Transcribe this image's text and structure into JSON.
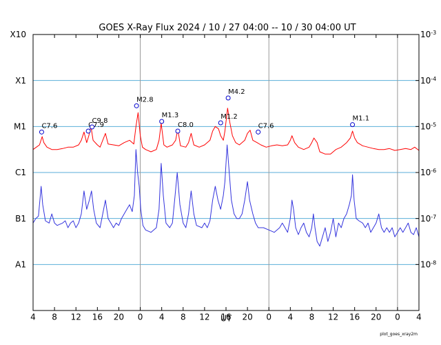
{
  "chart_data": {
    "type": "line",
    "title": "GOES X-Ray Flux   2024 / 10 / 27   04:00 -- 10 / 30   04:00   UT",
    "xlabel": "UT",
    "x_range_hours": [
      0,
      72
    ],
    "x_tick_hours": [
      0,
      4,
      8,
      12,
      16,
      20,
      24,
      28,
      32,
      36,
      40,
      44,
      48,
      52,
      56,
      60,
      64,
      68,
      72
    ],
    "x_tick_labels": [
      "4",
      "8",
      "12",
      "16",
      "20",
      "0",
      "4",
      "8",
      "12",
      "16",
      "20",
      "0",
      "4",
      "8",
      "12",
      "16",
      "20",
      "0",
      "4"
    ],
    "day_boundary_hours": [
      20,
      44,
      68
    ],
    "ylim_log10": [
      -9,
      -3
    ],
    "left_axis": [
      {
        "label": "X10",
        "log10": -3
      },
      {
        "label": "X1",
        "log10": -4
      },
      {
        "label": "M1",
        "log10": -5
      },
      {
        "label": "C1",
        "log10": -6
      },
      {
        "label": "B1",
        "log10": -7
      },
      {
        "label": "A1",
        "log10": -8
      }
    ],
    "right_axis": [
      {
        "base": "10",
        "exp": "-3",
        "log10": -3
      },
      {
        "base": "10",
        "exp": "-4",
        "log10": -4
      },
      {
        "base": "10",
        "exp": "-5",
        "log10": -5
      },
      {
        "base": "10",
        "exp": "-6",
        "log10": -6
      },
      {
        "base": "10",
        "exp": "-7",
        "log10": -7
      },
      {
        "base": "10",
        "exp": "-8",
        "log10": -8
      }
    ],
    "grid_levels_log10": [
      -4,
      -5,
      -6,
      -7,
      -8
    ],
    "series": [
      {
        "name": "long channel",
        "color": "#ff0000",
        "points": [
          [
            0,
            -5.5
          ],
          [
            0.6,
            -5.45
          ],
          [
            1.2,
            -5.4
          ],
          [
            1.7,
            -5.22
          ],
          [
            2.0,
            -5.35
          ],
          [
            2.6,
            -5.45
          ],
          [
            3.5,
            -5.5
          ],
          [
            4.5,
            -5.5
          ],
          [
            5.5,
            -5.48
          ],
          [
            6.5,
            -5.45
          ],
          [
            7.5,
            -5.45
          ],
          [
            8.5,
            -5.4
          ],
          [
            9.0,
            -5.3
          ],
          [
            9.5,
            -5.12
          ],
          [
            10.0,
            -5.35
          ],
          [
            10.4,
            -5.2
          ],
          [
            10.8,
            -5.0
          ],
          [
            11.2,
            -5.3
          ],
          [
            12.0,
            -5.4
          ],
          [
            12.5,
            -5.45
          ],
          [
            13.5,
            -5.15
          ],
          [
            14.0,
            -5.38
          ],
          [
            15.0,
            -5.4
          ],
          [
            16.0,
            -5.42
          ],
          [
            17.0,
            -5.35
          ],
          [
            18.0,
            -5.3
          ],
          [
            18.8,
            -5.38
          ],
          [
            19.2,
            -5.0
          ],
          [
            19.6,
            -4.7
          ],
          [
            20.0,
            -5.2
          ],
          [
            20.4,
            -5.45
          ],
          [
            21.0,
            -5.5
          ],
          [
            22.0,
            -5.55
          ],
          [
            23.0,
            -5.5
          ],
          [
            23.5,
            -5.3
          ],
          [
            23.9,
            -4.93
          ],
          [
            24.4,
            -5.4
          ],
          [
            25.0,
            -5.45
          ],
          [
            26.0,
            -5.4
          ],
          [
            26.6,
            -5.3
          ],
          [
            27.0,
            -5.06
          ],
          [
            27.5,
            -5.42
          ],
          [
            28.5,
            -5.45
          ],
          [
            29.0,
            -5.35
          ],
          [
            29.5,
            -5.15
          ],
          [
            30.0,
            -5.4
          ],
          [
            31.0,
            -5.45
          ],
          [
            32.0,
            -5.4
          ],
          [
            33.0,
            -5.3
          ],
          [
            33.5,
            -5.1
          ],
          [
            34.0,
            -5.0
          ],
          [
            34.6,
            -5.05
          ],
          [
            35.0,
            -5.2
          ],
          [
            35.5,
            -5.3
          ],
          [
            35.8,
            -5.1
          ],
          [
            36.3,
            -4.6
          ],
          [
            36.7,
            -4.9
          ],
          [
            37.2,
            -5.2
          ],
          [
            37.8,
            -5.35
          ],
          [
            38.5,
            -5.4
          ],
          [
            39.5,
            -5.3
          ],
          [
            40.0,
            -5.15
          ],
          [
            40.5,
            -5.08
          ],
          [
            41.0,
            -5.3
          ],
          [
            41.8,
            -5.35
          ],
          [
            42.5,
            -5.4
          ],
          [
            43.5,
            -5.45
          ],
          [
            44.5,
            -5.42
          ],
          [
            45.5,
            -5.4
          ],
          [
            46.5,
            -5.42
          ],
          [
            47.5,
            -5.4
          ],
          [
            48.0,
            -5.3
          ],
          [
            48.3,
            -5.2
          ],
          [
            48.8,
            -5.35
          ],
          [
            49.5,
            -5.45
          ],
          [
            50.5,
            -5.5
          ],
          [
            51.5,
            -5.45
          ],
          [
            52.0,
            -5.35
          ],
          [
            52.4,
            -5.25
          ],
          [
            53.0,
            -5.35
          ],
          [
            53.5,
            -5.55
          ],
          [
            54.5,
            -5.6
          ],
          [
            55.5,
            -5.6
          ],
          [
            56.5,
            -5.5
          ],
          [
            57.5,
            -5.45
          ],
          [
            58.5,
            -5.35
          ],
          [
            59.2,
            -5.25
          ],
          [
            59.6,
            -5.1
          ],
          [
            60.0,
            -5.25
          ],
          [
            60.5,
            -5.35
          ],
          [
            61.5,
            -5.42
          ],
          [
            62.5,
            -5.45
          ],
          [
            63.5,
            -5.48
          ],
          [
            64.5,
            -5.5
          ],
          [
            65.5,
            -5.5
          ],
          [
            66.5,
            -5.48
          ],
          [
            67.5,
            -5.52
          ],
          [
            68.5,
            -5.5
          ],
          [
            69.5,
            -5.48
          ],
          [
            70.5,
            -5.5
          ],
          [
            71.2,
            -5.45
          ],
          [
            72,
            -5.52
          ]
        ]
      },
      {
        "name": "short channel",
        "color": "#3333dd",
        "points": [
          [
            0,
            -7.1
          ],
          [
            0.5,
            -7.0
          ],
          [
            1.0,
            -6.95
          ],
          [
            1.5,
            -6.3
          ],
          [
            1.8,
            -6.7
          ],
          [
            2.3,
            -7.05
          ],
          [
            3.0,
            -7.1
          ],
          [
            3.5,
            -6.9
          ],
          [
            4.0,
            -7.1
          ],
          [
            4.5,
            -7.15
          ],
          [
            5.5,
            -7.1
          ],
          [
            6.0,
            -7.05
          ],
          [
            6.5,
            -7.2
          ],
          [
            7.0,
            -7.1
          ],
          [
            7.5,
            -7.05
          ],
          [
            8.0,
            -7.2
          ],
          [
            8.5,
            -7.1
          ],
          [
            9.0,
            -6.9
          ],
          [
            9.5,
            -6.4
          ],
          [
            10.0,
            -6.8
          ],
          [
            10.5,
            -6.6
          ],
          [
            10.9,
            -6.4
          ],
          [
            11.3,
            -6.8
          ],
          [
            11.8,
            -7.1
          ],
          [
            12.5,
            -7.2
          ],
          [
            13.0,
            -6.9
          ],
          [
            13.5,
            -6.6
          ],
          [
            14.0,
            -7.0
          ],
          [
            14.5,
            -7.1
          ],
          [
            15.0,
            -7.2
          ],
          [
            15.5,
            -7.1
          ],
          [
            16.0,
            -7.15
          ],
          [
            16.5,
            -7.0
          ],
          [
            17.0,
            -6.9
          ],
          [
            17.5,
            -6.8
          ],
          [
            18.0,
            -6.7
          ],
          [
            18.5,
            -6.85
          ],
          [
            18.9,
            -6.5
          ],
          [
            19.2,
            -5.5
          ],
          [
            19.5,
            -6.0
          ],
          [
            19.8,
            -6.3
          ],
          [
            20.1,
            -6.8
          ],
          [
            20.5,
            -7.15
          ],
          [
            21.0,
            -7.25
          ],
          [
            22.0,
            -7.3
          ],
          [
            23.0,
            -7.2
          ],
          [
            23.5,
            -6.8
          ],
          [
            23.9,
            -5.8
          ],
          [
            24.3,
            -6.5
          ],
          [
            24.8,
            -7.1
          ],
          [
            25.5,
            -7.2
          ],
          [
            26.0,
            -7.1
          ],
          [
            26.5,
            -6.5
          ],
          [
            26.9,
            -6.0
          ],
          [
            27.4,
            -6.7
          ],
          [
            28.0,
            -7.1
          ],
          [
            28.5,
            -7.2
          ],
          [
            29.0,
            -6.9
          ],
          [
            29.5,
            -6.4
          ],
          [
            30.0,
            -6.9
          ],
          [
            30.5,
            -7.15
          ],
          [
            31.5,
            -7.2
          ],
          [
            32.0,
            -7.1
          ],
          [
            32.5,
            -7.2
          ],
          [
            33.0,
            -7.05
          ],
          [
            33.5,
            -6.6
          ],
          [
            34.0,
            -6.3
          ],
          [
            34.5,
            -6.6
          ],
          [
            35.0,
            -6.8
          ],
          [
            35.5,
            -6.5
          ],
          [
            35.8,
            -6.2
          ],
          [
            36.2,
            -5.4
          ],
          [
            36.6,
            -6.0
          ],
          [
            37.0,
            -6.6
          ],
          [
            37.5,
            -6.9
          ],
          [
            38.0,
            -7.0
          ],
          [
            38.5,
            -7.0
          ],
          [
            39.0,
            -6.9
          ],
          [
            39.5,
            -6.6
          ],
          [
            40.0,
            -6.2
          ],
          [
            40.4,
            -6.6
          ],
          [
            41.0,
            -6.9
          ],
          [
            41.5,
            -7.1
          ],
          [
            42.0,
            -7.2
          ],
          [
            43.0,
            -7.2
          ],
          [
            44.0,
            -7.25
          ],
          [
            45.0,
            -7.3
          ],
          [
            46.0,
            -7.2
          ],
          [
            46.5,
            -7.1
          ],
          [
            47.0,
            -7.2
          ],
          [
            47.5,
            -7.3
          ],
          [
            48.0,
            -7.0
          ],
          [
            48.3,
            -6.6
          ],
          [
            48.6,
            -6.8
          ],
          [
            49.0,
            -7.2
          ],
          [
            49.5,
            -7.35
          ],
          [
            50.0,
            -7.2
          ],
          [
            50.5,
            -7.1
          ],
          [
            51.0,
            -7.3
          ],
          [
            51.5,
            -7.4
          ],
          [
            52.0,
            -7.2
          ],
          [
            52.3,
            -6.9
          ],
          [
            52.6,
            -7.2
          ],
          [
            53.0,
            -7.5
          ],
          [
            53.5,
            -7.6
          ],
          [
            54.0,
            -7.4
          ],
          [
            54.5,
            -7.2
          ],
          [
            55.0,
            -7.5
          ],
          [
            55.5,
            -7.3
          ],
          [
            56.0,
            -7.0
          ],
          [
            56.5,
            -7.4
          ],
          [
            57.0,
            -7.1
          ],
          [
            57.5,
            -7.2
          ],
          [
            58.0,
            -7.0
          ],
          [
            58.5,
            -6.9
          ],
          [
            59.0,
            -6.7
          ],
          [
            59.4,
            -6.5
          ],
          [
            59.6,
            -6.05
          ],
          [
            59.9,
            -6.6
          ],
          [
            60.3,
            -7.0
          ],
          [
            60.8,
            -7.05
          ],
          [
            61.5,
            -7.1
          ],
          [
            62.0,
            -7.2
          ],
          [
            62.5,
            -7.1
          ],
          [
            63.0,
            -7.3
          ],
          [
            63.5,
            -7.2
          ],
          [
            64.0,
            -7.1
          ],
          [
            64.5,
            -6.9
          ],
          [
            65.0,
            -7.2
          ],
          [
            65.5,
            -7.3
          ],
          [
            66.0,
            -7.2
          ],
          [
            66.5,
            -7.3
          ],
          [
            67.0,
            -7.2
          ],
          [
            67.5,
            -7.4
          ],
          [
            68.0,
            -7.3
          ],
          [
            68.5,
            -7.2
          ],
          [
            69.0,
            -7.3
          ],
          [
            69.5,
            -7.2
          ],
          [
            70.0,
            -7.1
          ],
          [
            70.5,
            -7.3
          ],
          [
            71.0,
            -7.35
          ],
          [
            71.5,
            -7.2
          ],
          [
            72,
            -7.4
          ]
        ]
      }
    ],
    "flares": [
      {
        "label": "C7.6",
        "hour": 1.6,
        "log10": -5.12
      },
      {
        "label": "C7.9",
        "hour": 10.3,
        "log10": -5.1
      },
      {
        "label": "C9.8",
        "hour": 11.0,
        "log10": -5.01
      },
      {
        "label": "M2.8",
        "hour": 19.3,
        "log10": -4.55
      },
      {
        "label": "M1.3",
        "hour": 24.0,
        "log10": -4.89
      },
      {
        "label": "C8.0",
        "hour": 27.0,
        "log10": -5.1
      },
      {
        "label": "M1.2",
        "hour": 35.0,
        "log10": -4.92
      },
      {
        "label": "M4.2",
        "hour": 36.4,
        "log10": -4.38
      },
      {
        "label": "C7.6",
        "hour": 42.0,
        "log10": -5.12
      },
      {
        "label": "M1.1",
        "hour": 59.6,
        "log10": -4.96
      }
    ],
    "credit": "plot_goes_xray2m"
  }
}
